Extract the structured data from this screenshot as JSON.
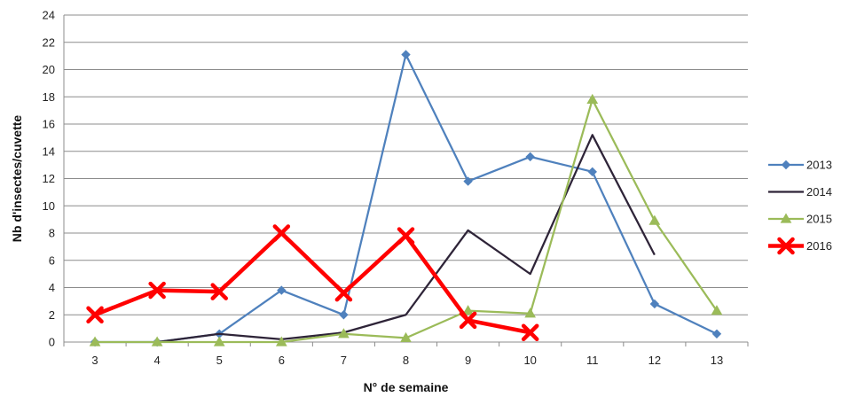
{
  "chart_data": {
    "type": "line",
    "title": "",
    "xlabel": "N° de semaine",
    "ylabel": "Nb d'insectes/cuvette",
    "x": [
      3,
      4,
      5,
      6,
      7,
      8,
      9,
      10,
      11,
      12,
      13
    ],
    "ylim": [
      0,
      24
    ],
    "yticks": [
      0,
      2,
      4,
      6,
      8,
      10,
      12,
      14,
      16,
      18,
      20,
      22,
      24
    ],
    "grid": true,
    "legend_position": "right",
    "series": [
      {
        "name": "2013",
        "color": "#4f81bd",
        "marker": "diamond",
        "values": [
          0,
          0,
          0.6,
          3.8,
          2.0,
          21.1,
          11.8,
          13.6,
          12.5,
          2.8,
          0.6
        ]
      },
      {
        "name": "2014",
        "color": "#2e2438",
        "marker": "none",
        "values": [
          null,
          0,
          0.6,
          0.2,
          0.7,
          2.0,
          8.2,
          5.0,
          15.2,
          6.4,
          null
        ]
      },
      {
        "name": "2015",
        "color": "#9bbb59",
        "marker": "triangle",
        "values": [
          0,
          0,
          0,
          0,
          0.6,
          0.3,
          2.3,
          2.1,
          17.8,
          8.9,
          2.3
        ]
      },
      {
        "name": "2016",
        "color": "#ff0000",
        "marker": "x",
        "values": [
          2.0,
          3.8,
          3.7,
          8.0,
          3.6,
          7.8,
          1.6,
          0.7,
          null,
          null,
          null
        ]
      }
    ]
  }
}
